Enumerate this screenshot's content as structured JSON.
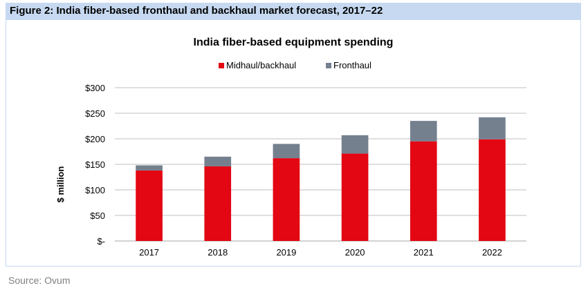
{
  "figure_caption": "Figure 2: India fiber-based fronthaul and backhaul market forecast, 2017–22",
  "source": "Source: Ovum",
  "colors": {
    "midhaul": "#e30613",
    "fronthaul": "#75808f",
    "grid": "#bfbfbf",
    "header_bg": "#c6d9f1"
  },
  "chart_data": {
    "type": "bar",
    "stacked": true,
    "title": "India fiber-based equipment spending",
    "xlabel": "",
    "ylabel": "$ million",
    "categories": [
      "2017",
      "2018",
      "2019",
      "2020",
      "2021",
      "2022"
    ],
    "series": [
      {
        "name": "Midhaul/backhaul",
        "values": [
          138,
          146,
          162,
          171,
          195,
          199
        ],
        "color": "#e30613"
      },
      {
        "name": "Fronthaul",
        "values": [
          10,
          19,
          28,
          36,
          40,
          43
        ],
        "color": "#75808f"
      }
    ],
    "ylim": [
      0,
      300
    ],
    "yticks": [
      0,
      50,
      100,
      150,
      200,
      250,
      300
    ],
    "ytick_labels": [
      "$-",
      "$50",
      "$100",
      "$150",
      "$200",
      "$250",
      "$300"
    ],
    "grid": true,
    "legend_position": "top"
  }
}
